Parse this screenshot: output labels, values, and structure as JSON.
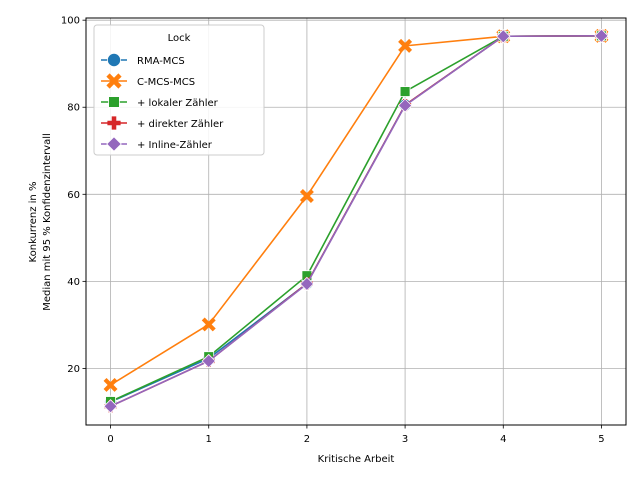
{
  "chart_data": {
    "type": "line",
    "title": "",
    "xlabel": "Kritische Arbeit",
    "ylabel_lines": [
      "Konkurrenz in %",
      "Median mit 95 % Konfidenzintervall"
    ],
    "x": [
      0,
      1,
      2,
      3,
      4,
      5
    ],
    "xticks": [
      "0",
      "1",
      "2",
      "3",
      "4",
      "5"
    ],
    "yticks": [
      20,
      40,
      60,
      80,
      100
    ],
    "xlim": [
      -0.25,
      5.25
    ],
    "ylim": [
      7,
      100.5
    ],
    "grid": true,
    "legend": {
      "title": "Lock",
      "placement": "top-left"
    },
    "series": [
      {
        "name": "RMA-MCS",
        "color": "#1f77b4",
        "marker": "circle",
        "values": [
          12.3,
          22.3,
          39.5,
          80.5,
          96.3,
          96.4
        ]
      },
      {
        "name": "C-MCS-MCS",
        "color": "#ff7f0e",
        "marker": "x",
        "values": [
          16.2,
          30.1,
          59.6,
          94.1,
          96.3,
          96.4
        ]
      },
      {
        "name": "+ lokaler Zähler",
        "color": "#2ca02c",
        "marker": "square",
        "values": [
          12.4,
          22.7,
          41.3,
          83.6,
          96.3,
          96.4
        ]
      },
      {
        "name": "+ direkter Zähler",
        "color": "#d62728",
        "marker": "plus",
        "values": [
          11.3,
          21.7,
          39.5,
          80.5,
          96.3,
          96.4
        ]
      },
      {
        "name": "+ Inline-Zähler",
        "color": "#9467bd",
        "marker": "diamond",
        "values": [
          11.3,
          21.7,
          39.4,
          80.4,
          96.3,
          96.4
        ]
      }
    ]
  }
}
